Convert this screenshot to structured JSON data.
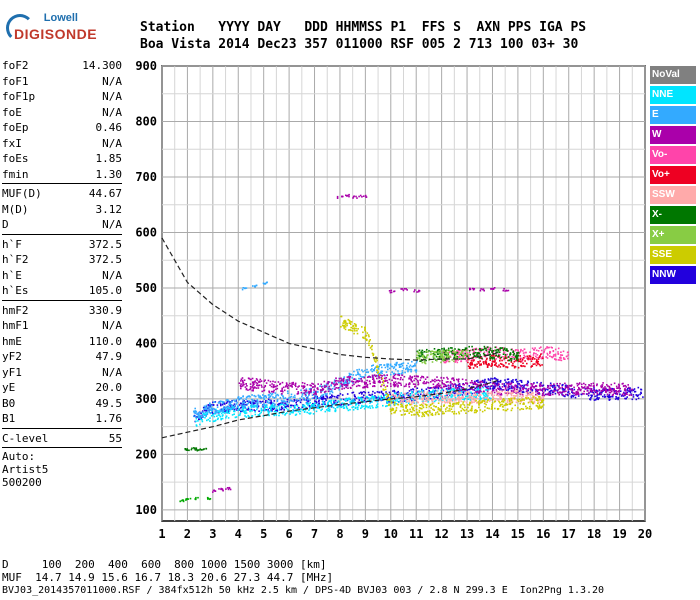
{
  "logo": {
    "top": "Lowell",
    "main": "DIGISONDE"
  },
  "header": {
    "line1": "Station   YYYY DAY   DDD HHMMSS P1  FFS S  AXN PPS IGA PS",
    "line2": "Boa Vista 2014 Dec23 357 011000 RSF 005 2 713 100 03+ 30"
  },
  "params": {
    "group1": [
      {
        "label": "foF2",
        "value": "14.300"
      },
      {
        "label": "foF1",
        "value": "N/A"
      },
      {
        "label": "foF1p",
        "value": "N/A"
      },
      {
        "label": "foE",
        "value": "N/A"
      },
      {
        "label": "foEp",
        "value": "0.46"
      },
      {
        "label": "fxI",
        "value": "N/A"
      },
      {
        "label": "foEs",
        "value": "1.85"
      },
      {
        "label": "fmin",
        "value": "1.30"
      }
    ],
    "group2": [
      {
        "label": "MUF(D)",
        "value": "44.67"
      },
      {
        "label": "M(D)",
        "value": "3.12"
      },
      {
        "label": "D",
        "value": "N/A"
      }
    ],
    "group3": [
      {
        "label": "h`F",
        "value": "372.5"
      },
      {
        "label": "h`F2",
        "value": "372.5"
      },
      {
        "label": "h`E",
        "value": "N/A"
      },
      {
        "label": "h`Es",
        "value": "105.0"
      }
    ],
    "group4": [
      {
        "label": "hmF2",
        "value": "330.9"
      },
      {
        "label": "hmF1",
        "value": "N/A"
      },
      {
        "label": "hmE",
        "value": "110.0"
      },
      {
        "label": "yF2",
        "value": "47.9"
      },
      {
        "label": "yF1",
        "value": "N/A"
      },
      {
        "label": "yE",
        "value": "20.0"
      },
      {
        "label": "B0",
        "value": "49.5"
      },
      {
        "label": "B1",
        "value": "1.76"
      }
    ],
    "group5": [
      {
        "label": "C-level",
        "value": "55"
      }
    ],
    "auto_label": "Auto:",
    "artist": "Artist5",
    "code": "500200"
  },
  "legend": [
    {
      "label": "NoVal",
      "color": "#808080"
    },
    {
      "label": "NNE",
      "color": "#00e5ff"
    },
    {
      "label": "E",
      "color": "#33aaff"
    },
    {
      "label": "W",
      "color": "#aa00aa"
    },
    {
      "label": "Vo-",
      "color": "#ff44aa"
    },
    {
      "label": "Vo+",
      "color": "#ee0022"
    },
    {
      "label": "SSW",
      "color": "#ffaaaa"
    },
    {
      "label": "X-",
      "color": "#007700"
    },
    {
      "label": "X+",
      "color": "#88cc44"
    },
    {
      "label": "SSE",
      "color": "#cccc00"
    },
    {
      "label": "NNW",
      "color": "#2200dd"
    }
  ],
  "footer": {
    "line1": "D     100  200  400  600  800 1000 1500 3000 [km]",
    "line2": "MUF  14.7 14.9 15.6 16.7 18.3 20.6 27.3 44.7 [MHz]",
    "line3": "BVJ03_2014357011000.RSF / 384fx512h 50 kHz 2.5 km / DPS-4D BVJ03 003 / 2.8 N 299.3 E  Ion2Png 1.3.20"
  },
  "chart_data": {
    "type": "scatter",
    "xlabel": "",
    "ylabel": "",
    "xlim": [
      1,
      20
    ],
    "ylim": [
      80,
      900
    ],
    "x_ticks": [
      1,
      2,
      3,
      4,
      5,
      6,
      7,
      8,
      9,
      10,
      11,
      12,
      13,
      14,
      15,
      16,
      17,
      18,
      19,
      20
    ],
    "y_ticks": [
      100,
      200,
      300,
      400,
      500,
      600,
      700,
      800,
      900
    ],
    "grid": true,
    "legend_position": "right",
    "series": [
      {
        "name": "NNW",
        "color": "#2200dd",
        "band": [
          [
            2.2,
            270
          ],
          [
            3,
            285
          ],
          [
            4,
            290
          ],
          [
            5,
            290
          ],
          [
            6,
            290
          ],
          [
            7,
            295
          ],
          [
            8,
            300
          ],
          [
            9,
            305
          ],
          [
            10,
            305
          ],
          [
            11,
            310
          ],
          [
            12,
            315
          ],
          [
            13,
            320
          ],
          [
            14,
            330
          ],
          [
            15,
            325
          ],
          [
            16,
            320
          ],
          [
            17,
            315
          ],
          [
            18,
            310
          ],
          [
            19,
            310
          ],
          [
            19.9,
            312
          ]
        ]
      },
      {
        "name": "NNE",
        "color": "#00e5ff",
        "band": [
          [
            2.3,
            262
          ],
          [
            3,
            272
          ],
          [
            4,
            278
          ],
          [
            5,
            280
          ],
          [
            6,
            282
          ],
          [
            7,
            285
          ],
          [
            8,
            290
          ],
          [
            9,
            295
          ],
          [
            10,
            300
          ],
          [
            11,
            305
          ],
          [
            12,
            308
          ],
          [
            13,
            310
          ],
          [
            14,
            312
          ]
        ]
      },
      {
        "name": "E",
        "color": "#33aaff",
        "band": [
          [
            2.2,
            275
          ],
          [
            3,
            285
          ],
          [
            4,
            295
          ],
          [
            5,
            300
          ],
          [
            6,
            305
          ],
          [
            7,
            310
          ],
          [
            8,
            330
          ],
          [
            9,
            350
          ],
          [
            10,
            355
          ],
          [
            11,
            360
          ]
        ]
      },
      {
        "name": "W",
        "color": "#aa00aa",
        "band": [
          [
            4,
            330
          ],
          [
            5,
            325
          ],
          [
            6,
            320
          ],
          [
            7,
            320
          ],
          [
            8,
            330
          ],
          [
            10,
            335
          ],
          [
            12,
            330
          ],
          [
            14,
            320
          ],
          [
            16,
            318
          ],
          [
            18,
            320
          ],
          [
            19.5,
            318
          ]
        ]
      },
      {
        "name": "Vo-",
        "color": "#ff44aa",
        "band": [
          [
            12,
            375
          ],
          [
            13,
            380
          ],
          [
            14,
            385
          ],
          [
            15,
            380
          ],
          [
            16,
            385
          ],
          [
            17,
            380
          ]
        ]
      },
      {
        "name": "Vo+",
        "color": "#ee0022",
        "band": [
          [
            13,
            365
          ],
          [
            14,
            370
          ],
          [
            15,
            368
          ],
          [
            16,
            372
          ]
        ]
      },
      {
        "name": "SSW",
        "color": "#ffaaaa",
        "band": [
          [
            10,
            300
          ],
          [
            12,
            305
          ],
          [
            14,
            305
          ],
          [
            16,
            305
          ]
        ]
      },
      {
        "name": "X-",
        "color": "#007700",
        "band": [
          [
            11,
            380
          ],
          [
            12,
            382
          ],
          [
            13,
            385
          ],
          [
            14,
            385
          ],
          [
            15,
            378
          ]
        ]
      },
      {
        "name": "X+",
        "color": "#88cc44",
        "band": [
          [
            11,
            375
          ],
          [
            12,
            378
          ],
          [
            13,
            380
          ]
        ]
      },
      {
        "name": "SSE",
        "color": "#cccc00",
        "band": [
          [
            8,
            440
          ],
          [
            9,
            420
          ],
          [
            10,
            285
          ],
          [
            11,
            280
          ],
          [
            14,
            290
          ],
          [
            16,
            295
          ]
        ]
      }
    ],
    "es_traces": [
      {
        "color": "#007700",
        "points": [
          [
            2,
            210
          ],
          [
            2.2,
            212
          ],
          [
            2.4,
            210
          ],
          [
            2.6,
            211
          ]
        ]
      },
      {
        "color": "#aa00aa",
        "points": [
          [
            3,
            135
          ],
          [
            3.3,
            138
          ],
          [
            3.6,
            140
          ]
        ]
      },
      {
        "color": "#00aa00",
        "points": [
          [
            1.7,
            118
          ],
          [
            2,
            120
          ],
          [
            2.4,
            122
          ],
          [
            2.8,
            122
          ]
        ]
      },
      {
        "color": "#aa00aa",
        "points": [
          [
            8,
            665
          ],
          [
            8.3,
            668
          ],
          [
            8.6,
            665
          ],
          [
            8.9,
            667
          ]
        ]
      },
      {
        "color": "#aa00aa",
        "points": [
          [
            13.2,
            500
          ],
          [
            13.6,
            498
          ],
          [
            14,
            500
          ],
          [
            14.5,
            498
          ]
        ]
      },
      {
        "color": "#aa00aa",
        "points": [
          [
            10,
            495
          ],
          [
            10.5,
            498
          ],
          [
            11,
            496
          ]
        ]
      },
      {
        "color": "#33aaff",
        "points": [
          [
            4.2,
            500
          ],
          [
            4.6,
            505
          ],
          [
            5,
            510
          ]
        ]
      }
    ],
    "profile_upper": [
      [
        1,
        590
      ],
      [
        1.5,
        550
      ],
      [
        2,
        510
      ],
      [
        3,
        470
      ],
      [
        4,
        440
      ],
      [
        5,
        420
      ],
      [
        6,
        400
      ],
      [
        7,
        390
      ],
      [
        8,
        380
      ],
      [
        9,
        375
      ],
      [
        10,
        372
      ],
      [
        11,
        370
      ],
      [
        12,
        372
      ],
      [
        13,
        372
      ],
      [
        14,
        380
      ],
      [
        14.3,
        385
      ]
    ],
    "profile_lower": [
      [
        1,
        230
      ],
      [
        2,
        240
      ],
      [
        3,
        250
      ],
      [
        4,
        262
      ],
      [
        5,
        270
      ],
      [
        6,
        278
      ],
      [
        7,
        284
      ],
      [
        8,
        290
      ],
      [
        9,
        295
      ],
      [
        10,
        300
      ],
      [
        11,
        304
      ],
      [
        12,
        310
      ],
      [
        13,
        318
      ],
      [
        14,
        330
      ],
      [
        14.3,
        335
      ]
    ]
  }
}
